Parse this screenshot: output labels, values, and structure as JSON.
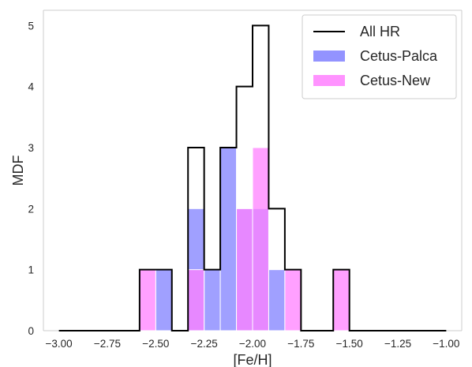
{
  "chart_data": {
    "type": "histogram",
    "xlabel": "[Fe/H]",
    "ylabel": "MDF",
    "xlim": [
      -3.0,
      -1.0
    ],
    "ylim": [
      0,
      5.25
    ],
    "grid": false,
    "legend_position": "top-right",
    "bin_width": 0.0833,
    "x_ticks": [
      "−3.00",
      "−2.75",
      "−2.50",
      "−2.25",
      "−2.00",
      "−1.75",
      "−1.50",
      "−1.25",
      "−1.00"
    ],
    "y_ticks": [
      "0",
      "1",
      "2",
      "3",
      "4",
      "5"
    ],
    "series": [
      {
        "name": "All HR",
        "style": "step",
        "color": "#000000",
        "bins": [
          {
            "x": -3.0,
            "value": 0
          },
          {
            "x": -2.9167,
            "value": 0
          },
          {
            "x": -2.8333,
            "value": 0
          },
          {
            "x": -2.75,
            "value": 0
          },
          {
            "x": -2.6667,
            "value": 0
          },
          {
            "x": -2.5833,
            "value": 1
          },
          {
            "x": -2.5,
            "value": 1
          },
          {
            "x": -2.4167,
            "value": 0
          },
          {
            "x": -2.3333,
            "value": 3
          },
          {
            "x": -2.25,
            "value": 1
          },
          {
            "x": -2.1667,
            "value": 3
          },
          {
            "x": -2.0833,
            "value": 4
          },
          {
            "x": -2.0,
            "value": 5
          },
          {
            "x": -1.9167,
            "value": 2
          },
          {
            "x": -1.8333,
            "value": 1
          },
          {
            "x": -1.75,
            "value": 0
          },
          {
            "x": -1.6667,
            "value": 0
          },
          {
            "x": -1.5833,
            "value": 1
          },
          {
            "x": -1.5,
            "value": 0
          },
          {
            "x": -1.4167,
            "value": 0
          },
          {
            "x": -1.3333,
            "value": 0
          },
          {
            "x": -1.25,
            "value": 0
          },
          {
            "x": -1.1667,
            "value": 0
          },
          {
            "x": -1.0833,
            "value": 0
          }
        ]
      },
      {
        "name": "Cetus-Palca",
        "style": "fill",
        "color": "#8080ff",
        "bins": [
          {
            "x": -2.5,
            "value": 1
          },
          {
            "x": -2.3333,
            "value": 2
          },
          {
            "x": -2.25,
            "value": 1
          },
          {
            "x": -2.1667,
            "value": 3
          },
          {
            "x": -2.0833,
            "value": 2
          },
          {
            "x": -2.0,
            "value": 2
          },
          {
            "x": -1.9167,
            "value": 1
          }
        ]
      },
      {
        "name": "Cetus-New",
        "style": "fill",
        "color": "#ff80ff",
        "bins": [
          {
            "x": -2.5833,
            "value": 1
          },
          {
            "x": -2.3333,
            "value": 1
          },
          {
            "x": -2.0833,
            "value": 2
          },
          {
            "x": -2.0,
            "value": 3
          },
          {
            "x": -1.8333,
            "value": 1
          },
          {
            "x": -1.5833,
            "value": 1
          }
        ]
      }
    ]
  }
}
